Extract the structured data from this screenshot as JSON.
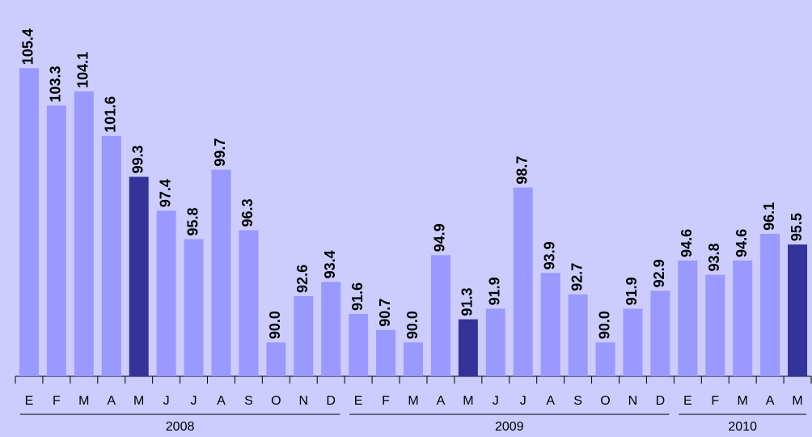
{
  "chart_data": {
    "type": "bar",
    "background": "#ccccff",
    "ylim": [
      88.1,
      109
    ],
    "groups": [
      {
        "label": "2008",
        "categories": [
          "E",
          "F",
          "M",
          "A",
          "M",
          "J",
          "J",
          "A",
          "S",
          "O",
          "N",
          "D"
        ],
        "values": [
          105.4,
          103.3,
          104.1,
          101.6,
          99.3,
          97.4,
          95.8,
          99.7,
          96.3,
          90.0,
          92.6,
          93.4
        ],
        "value_labels": [
          "105.4",
          "103.3",
          "104.1",
          "101.6",
          "99.3",
          "97.4",
          "95.8",
          "99.7",
          "96.3",
          "90.0",
          "92.6",
          "93.4"
        ],
        "colors": [
          "#9999ff",
          "#9999ff",
          "#9999ff",
          "#9999ff",
          "#333399",
          "#9999ff",
          "#9999ff",
          "#9999ff",
          "#9999ff",
          "#9999ff",
          "#9999ff",
          "#9999ff"
        ]
      },
      {
        "label": "2009",
        "categories": [
          "E",
          "F",
          "M",
          "A",
          "M",
          "J",
          "J",
          "A",
          "S",
          "O",
          "N",
          "D"
        ],
        "values": [
          91.6,
          90.7,
          90.0,
          94.9,
          91.3,
          91.9,
          98.7,
          93.9,
          92.7,
          90.0,
          91.9,
          92.9
        ],
        "value_labels": [
          "91.6",
          "90.7",
          "90.0",
          "94.9",
          "91.3",
          "91.9",
          "98.7",
          "93.9",
          "92.7",
          "90.0",
          "91.9",
          "92.9"
        ],
        "colors": [
          "#9999ff",
          "#9999ff",
          "#9999ff",
          "#9999ff",
          "#333399",
          "#9999ff",
          "#9999ff",
          "#9999ff",
          "#9999ff",
          "#9999ff",
          "#9999ff",
          "#9999ff"
        ]
      },
      {
        "label": "2010",
        "categories": [
          "E",
          "F",
          "M",
          "A",
          "M"
        ],
        "values": [
          94.6,
          93.8,
          94.6,
          96.1,
          95.5
        ],
        "value_labels": [
          "94.6",
          "93.8",
          "94.6",
          "96.1",
          "95.5"
        ],
        "colors": [
          "#9999ff",
          "#9999ff",
          "#9999ff",
          "#9999ff",
          "#333399"
        ]
      }
    ]
  }
}
